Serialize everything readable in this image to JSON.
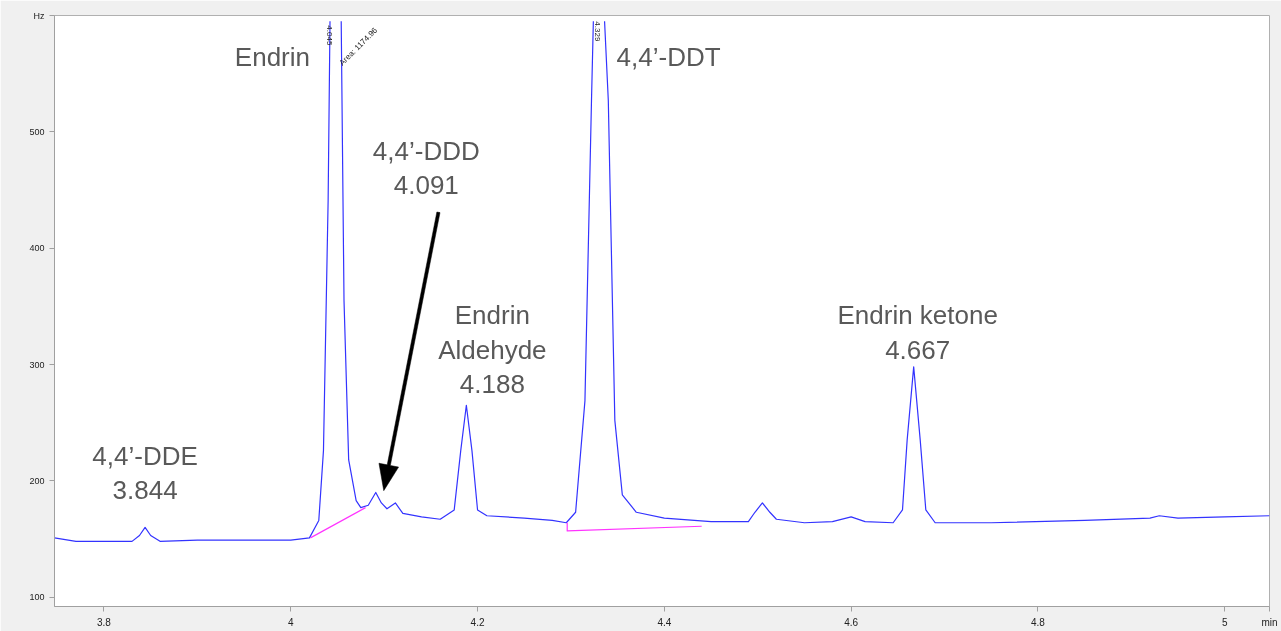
{
  "chart_data": {
    "type": "line",
    "xlabel": "min",
    "ylabel": "Hz",
    "xlim": [
      3.747,
      5.048
    ],
    "ylim": [
      92,
      600
    ],
    "xticks": [
      3.8,
      4,
      4.2,
      4.4,
      4.6,
      4.8,
      5
    ],
    "yticks": [
      100,
      200,
      300,
      400,
      500
    ],
    "grid": false,
    "marker": "none",
    "line_style": "solid",
    "series": [
      {
        "color": "#3333ff",
        "x": [
          3.747,
          3.77,
          3.8,
          3.83,
          3.838,
          3.844,
          3.85,
          3.86,
          3.9,
          3.95,
          4.0,
          4.02,
          4.03,
          4.035,
          4.04,
          4.042,
          4.048,
          4.054,
          4.057,
          4.062,
          4.07,
          4.075,
          4.083,
          4.091,
          4.097,
          4.103,
          4.112,
          4.12,
          4.14,
          4.16,
          4.175,
          4.182,
          4.188,
          4.194,
          4.2,
          4.21,
          4.25,
          4.28,
          4.295,
          4.305,
          4.315,
          4.322,
          4.324,
          4.329,
          4.336,
          4.34,
          4.347,
          4.355,
          4.37,
          4.4,
          4.45,
          4.49,
          4.497,
          4.505,
          4.513,
          4.52,
          4.55,
          4.58,
          4.6,
          4.615,
          4.645,
          4.655,
          4.66,
          4.667,
          4.674,
          4.68,
          4.69,
          4.75,
          4.85,
          4.92,
          4.93,
          4.95,
          5.0,
          5.048
        ],
        "values": [
          151,
          148,
          148,
          148,
          153,
          160,
          153,
          148,
          149,
          149,
          149,
          151,
          166,
          226,
          441,
          595,
          null,
          595,
          355,
          218,
          183,
          177,
          179,
          190,
          181,
          176,
          181,
          172,
          169,
          167,
          175,
          226,
          265,
          226,
          175,
          170,
          168,
          166,
          164,
          173,
          269,
          527,
          595,
          null,
          595,
          527,
          252,
          188,
          173,
          168,
          165,
          165,
          173,
          181,
          173,
          167,
          164,
          165,
          169,
          165,
          164,
          175,
          235,
          298,
          235,
          175,
          164,
          164,
          166,
          168,
          170,
          168,
          169,
          170
        ]
      },
      {
        "color": "#ff33ff",
        "x": [
          4.021,
          4.08
        ],
        "values": [
          151,
          177
        ]
      },
      {
        "color": "#ff33ff",
        "x": [
          4.296,
          4.296,
          4.44
        ],
        "values": [
          164,
          157,
          161
        ]
      }
    ],
    "annotations": [
      {
        "text": "Endrin",
        "x": 4.042,
        "y": 595
      },
      {
        "text": "4,4’-DDT",
        "x": 4.336,
        "y": 595
      },
      {
        "text": "4,4’-DDE\n3.844",
        "x": 3.844,
        "y": 160
      },
      "4,4’-DDD\n4.091",
      {
        "text": "Endrin\nAldehyde\n4.188",
        "x": 4.188,
        "y": 265
      },
      {
        "text": "Endrin ketone\n4.667",
        "x": 4.667,
        "y": 298
      },
      {
        "text": "4.045",
        "x": 4.042,
        "y": 595
      },
      "Area: 1174.96",
      {
        "text": "4.329",
        "x": 4.324,
        "y": 595
      }
    ]
  }
}
